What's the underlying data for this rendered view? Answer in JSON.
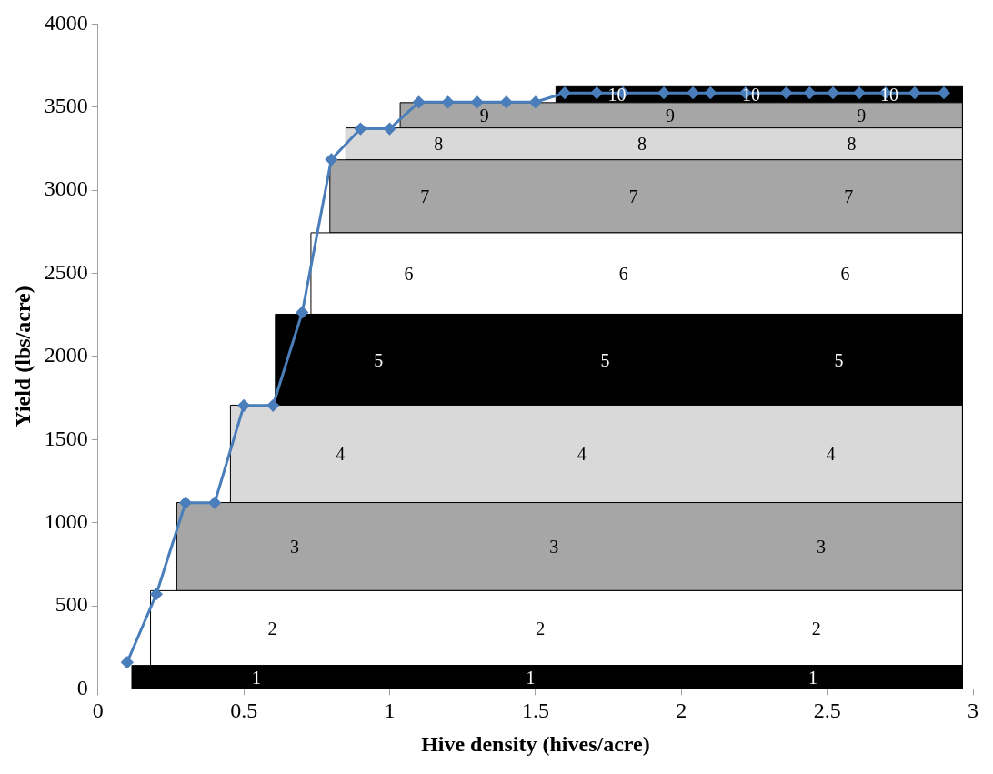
{
  "chart_data": {
    "type": "area",
    "stacked": true,
    "xlabel": "Hive density (hives/acre)",
    "ylabel": "Yield (lbs/acre)",
    "xlim": [
      0,
      3
    ],
    "xticks": [
      0,
      0.5,
      1,
      1.5,
      2,
      2.5,
      3
    ],
    "ylim": [
      0,
      4000
    ],
    "yticks": [
      0,
      500,
      1000,
      1500,
      2000,
      2500,
      3000,
      3500,
      4000
    ],
    "series": [
      {
        "name": "1",
        "color": "#000000",
        "x": [
          0.116,
          2.964
        ],
        "values": [
          141,
          141
        ]
      },
      {
        "name": "2",
        "color": "#ffffff",
        "x": [
          0.18,
          2.964
        ],
        "values": [
          450,
          450
        ]
      },
      {
        "name": "3",
        "color": "#a6a6a6",
        "x": [
          0.27,
          2.964
        ],
        "values": [
          530,
          530
        ]
      },
      {
        "name": "4",
        "color": "#d9d9d9",
        "x": [
          0.454,
          2.964
        ],
        "values": [
          586,
          586
        ]
      },
      {
        "name": "5",
        "color": "#000000",
        "x": [
          0.608,
          2.964
        ],
        "values": [
          547,
          547
        ]
      },
      {
        "name": "6",
        "color": "#ffffff",
        "x": [
          0.73,
          2.964
        ],
        "values": [
          490,
          490
        ]
      },
      {
        "name": "7",
        "color": "#a6a6a6",
        "x": [
          0.795,
          2.964
        ],
        "values": [
          439,
          439
        ]
      },
      {
        "name": "8",
        "color": "#d9d9d9",
        "x": [
          0.85,
          2.964
        ],
        "values": [
          192,
          192
        ]
      },
      {
        "name": "9",
        "color": "#a6a6a6",
        "x": [
          1.036,
          2.964
        ],
        "values": [
          152,
          152
        ]
      },
      {
        "name": "10",
        "color": "#000000",
        "x": [
          1.57,
          2.964
        ],
        "values": [
          96,
          96
        ]
      },
      {
        "type": "line",
        "color": "#4a7ebb",
        "marker": "diamond",
        "line_style": "solid",
        "x": [
          0.1,
          0.2,
          0.3,
          0.4,
          0.5,
          0.6,
          0.7,
          0.8,
          0.9,
          1.0,
          1.1,
          1.2,
          1.3,
          1.4,
          1.5,
          1.6,
          1.71,
          1.8,
          1.94,
          2.04,
          2.1,
          2.22,
          2.36,
          2.44,
          2.52,
          2.61,
          2.7,
          2.8,
          2.9
        ],
        "values": [
          160,
          570,
          1120,
          1120,
          1705,
          1705,
          2265,
          3185,
          3370,
          3370,
          3530,
          3530,
          3530,
          3530,
          3530,
          3585,
          3585,
          3585,
          3585,
          3585,
          3585,
          3585,
          3585,
          3585,
          3585,
          3585,
          3585,
          3585,
          3585
        ]
      }
    ]
  }
}
